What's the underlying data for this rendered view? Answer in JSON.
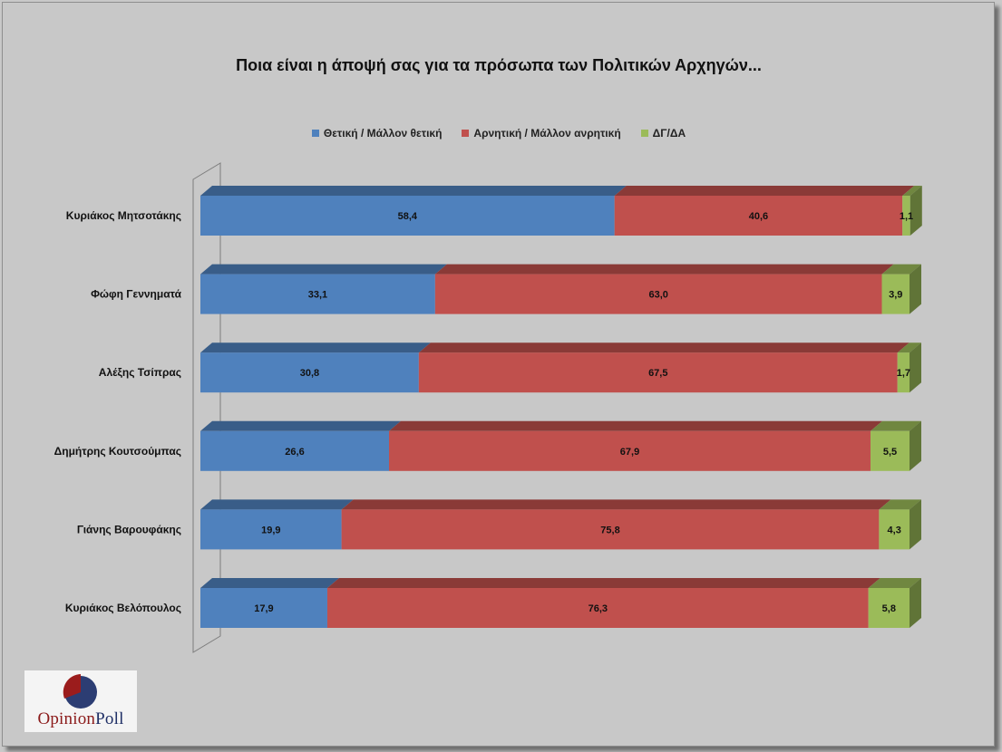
{
  "chart_data": {
    "type": "bar",
    "orientation": "horizontal",
    "stacked": true,
    "title": "Ποια είναι η άποψή σας για τα πρόσωπα των Πολιτικών Αρχηγών...",
    "categories": [
      "Κυριάκος Μητσοτάκης",
      "Φώφη Γεννηματά",
      "Αλέξης Τσίπρας",
      "Δημήτρης Κουτσούμπας",
      "Γιάνης Βαρουφάκης",
      "Κυριάκος Βελόπουλος"
    ],
    "series": [
      {
        "name": "Θετική / Μάλλον θετική",
        "color": "#4f81bd",
        "values": [
          58.4,
          33.1,
          30.8,
          26.6,
          19.9,
          17.9
        ],
        "labels": [
          "58,4",
          "33,1",
          "30,8",
          "26,6",
          "19,9",
          "17,9"
        ]
      },
      {
        "name": "Αρνητική / Μάλλον ανρητική",
        "color": "#c0504d",
        "values": [
          40.6,
          63.0,
          67.5,
          67.9,
          75.8,
          76.3
        ],
        "labels": [
          "40,6",
          "63,0",
          "67,5",
          "67,9",
          "75,8",
          "76,3"
        ]
      },
      {
        "name": "ΔΓ/ΔΑ",
        "color": "#9bbb59",
        "values": [
          1.1,
          3.9,
          1.7,
          5.5,
          4.3,
          5.8
        ],
        "labels": [
          "1,1",
          "3,9",
          "1,7",
          "5,5",
          "4,3",
          "5,8"
        ]
      }
    ],
    "xlim": [
      0,
      100
    ],
    "legend": "top-center",
    "grid": false,
    "style": "3d"
  },
  "logo": {
    "part1": "Opinion",
    "part2": "Poll"
  }
}
